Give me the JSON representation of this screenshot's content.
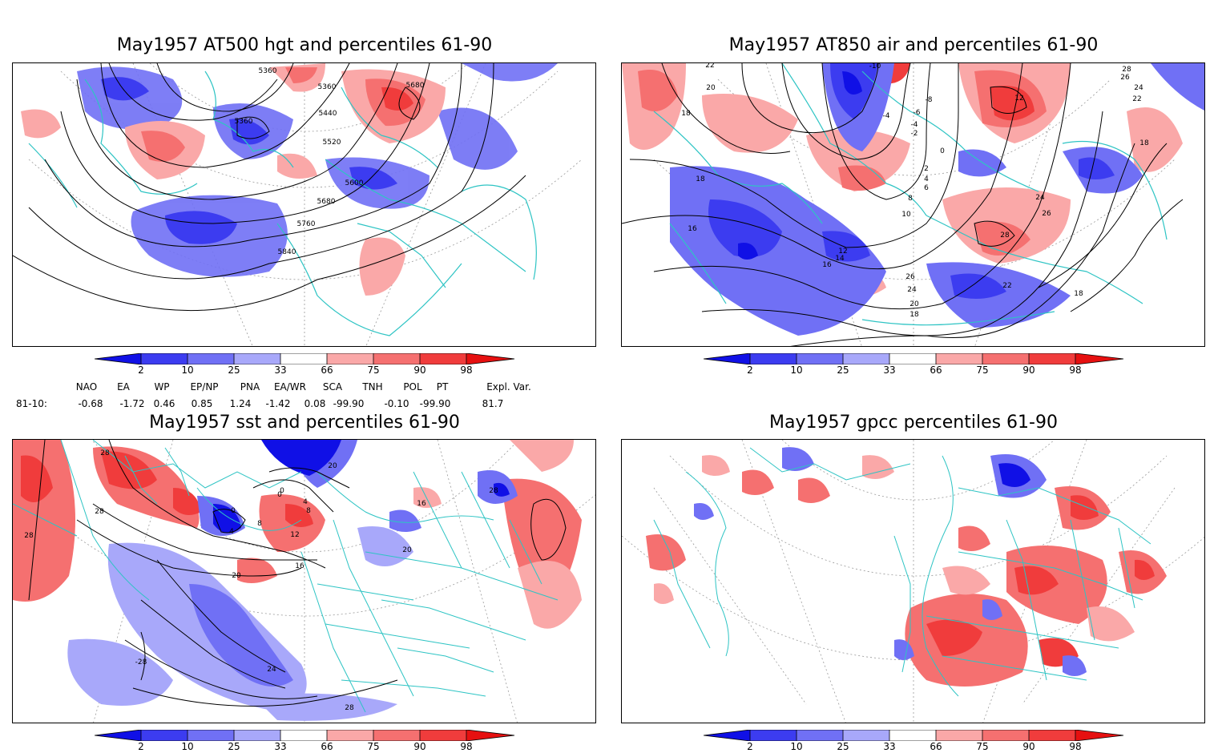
{
  "panels": [
    {
      "id": "hgt",
      "title": "May1957 AT500 hgt and percentiles 61-90",
      "contour_labels": [
        "5360",
        "5360",
        "5680",
        "5360",
        "5440",
        "5520",
        "5600",
        "5680",
        "5760",
        "5840"
      ]
    },
    {
      "id": "air",
      "title": "May1957 AT850 air and percentiles 61-90",
      "contour_labels": [
        "22",
        "20",
        "18",
        "18",
        "16",
        "-10",
        "-8",
        "-6",
        "-4",
        "-4",
        "-2",
        "0",
        "2",
        "4",
        "6",
        "8",
        "10",
        "12",
        "14",
        "16",
        "12",
        "26",
        "24",
        "22",
        "18",
        "28",
        "28",
        "26",
        "24",
        "22",
        "20",
        "18",
        "24",
        "26",
        "18"
      ]
    },
    {
      "id": "sst",
      "title": "May1957 sst and percentiles 61-90",
      "contour_labels": [
        "28",
        "28",
        "28",
        "0",
        "0",
        "4",
        "8",
        "12",
        "16",
        "20",
        "24",
        "28",
        "-28",
        "16",
        "20",
        "28",
        "20",
        "0",
        "4",
        "8"
      ]
    },
    {
      "id": "gpcc",
      "title": "May1957 gpcc percentiles 61-90",
      "contour_labels": []
    }
  ],
  "colorbar": {
    "labels": [
      "2",
      "10",
      "25",
      "33",
      "66",
      "75",
      "90",
      "98"
    ],
    "colors": [
      "#1010e6",
      "#3c3cf0",
      "#7070f5",
      "#a8a8fa",
      "#ffffff",
      "#faa8a8",
      "#f57070",
      "#f03c3c",
      "#e61010"
    ]
  },
  "indices": {
    "headers": [
      "NAO",
      "EA",
      "WP",
      "EP/NP",
      "PNA",
      "EA/WR",
      "SCA",
      "TNH",
      "POL",
      "PT",
      "Expl. Var."
    ],
    "row_label": "81-10:",
    "values": [
      "-0.68",
      "-1.72",
      "0.46",
      "0.85",
      "1.24",
      "-1.42",
      "0.08",
      "-99.90",
      "-0.10",
      "-99.90",
      "81.7"
    ]
  },
  "colors": {
    "coastline": "#2ec4c4",
    "contour": "#000000",
    "grid": "#888888"
  }
}
